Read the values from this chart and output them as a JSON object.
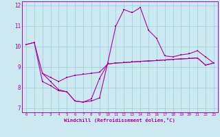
{
  "xlabel": "Windchill (Refroidissement éolien,°C)",
  "bg_color": "#cce8f0",
  "line_color": "#aa00aa",
  "grid_color": "#99ccdd",
  "xlim": [
    -0.5,
    23.5
  ],
  "ylim": [
    6.8,
    12.2
  ],
  "yticks": [
    7,
    8,
    9,
    10,
    11,
    12
  ],
  "xticks": [
    0,
    1,
    2,
    3,
    4,
    5,
    6,
    7,
    8,
    9,
    10,
    11,
    12,
    13,
    14,
    15,
    16,
    17,
    18,
    19,
    20,
    21,
    22,
    23
  ],
  "line1_x": [
    0,
    1,
    2,
    3,
    4,
    5,
    6,
    7,
    8,
    9,
    10,
    11,
    12,
    13,
    14,
    15,
    16,
    17,
    18,
    19,
    20,
    21,
    22,
    23
  ],
  "line1_y": [
    10.1,
    10.2,
    8.7,
    8.3,
    7.9,
    7.8,
    7.35,
    7.3,
    7.35,
    7.5,
    9.2,
    11.0,
    11.8,
    11.65,
    11.9,
    10.8,
    10.4,
    9.55,
    9.5,
    9.6,
    9.65,
    9.8,
    9.5,
    9.2
  ],
  "line2_x": [
    2,
    3,
    4,
    5,
    6,
    7,
    8,
    9,
    10,
    11,
    12,
    13,
    14,
    15,
    16,
    17,
    18,
    19,
    20,
    21,
    22,
    23
  ],
  "line2_y": [
    8.7,
    8.5,
    8.3,
    8.5,
    8.6,
    8.65,
    8.7,
    8.75,
    9.15,
    9.2,
    9.22,
    9.25,
    9.28,
    9.3,
    9.32,
    9.35,
    9.38,
    9.4,
    9.42,
    9.45,
    9.1,
    9.2
  ],
  "line3_x": [
    0,
    1,
    2,
    3,
    4,
    5,
    6,
    7,
    8,
    9,
    10,
    11,
    12,
    13,
    14,
    15,
    16,
    17,
    18,
    19,
    20,
    21,
    22,
    23
  ],
  "line3_y": [
    10.1,
    10.2,
    8.3,
    8.1,
    7.85,
    7.8,
    7.35,
    7.3,
    7.45,
    8.45,
    9.15,
    9.2,
    9.22,
    9.25,
    9.28,
    9.3,
    9.32,
    9.35,
    9.38,
    9.4,
    9.42,
    9.45,
    9.1,
    9.2
  ]
}
